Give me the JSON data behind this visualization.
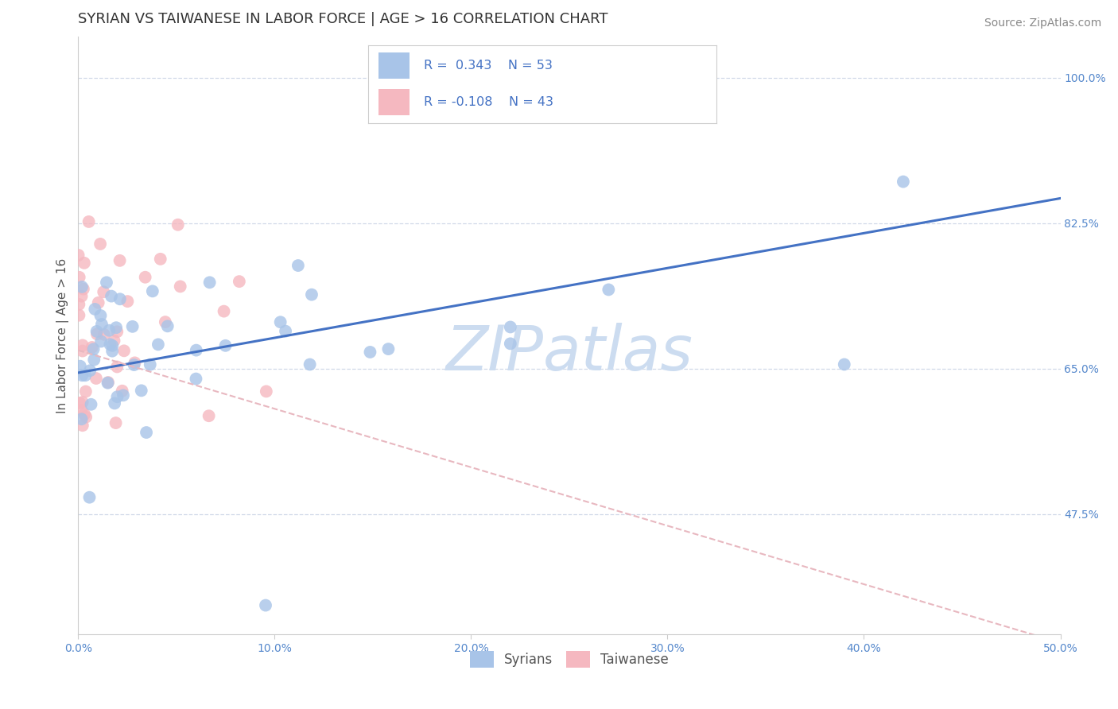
{
  "title": "SYRIAN VS TAIWANESE IN LABOR FORCE | AGE > 16 CORRELATION CHART",
  "source_text": "Source: ZipAtlas.com",
  "ylabel_text": "In Labor Force | Age > 16",
  "xlim": [
    0.0,
    0.5
  ],
  "ylim": [
    0.33,
    1.05
  ],
  "xticks": [
    0.0,
    0.1,
    0.2,
    0.3,
    0.4,
    0.5
  ],
  "xticklabels": [
    "0.0%",
    "10.0%",
    "20.0%",
    "30.0%",
    "40.0%",
    "50.0%"
  ],
  "yticks": [
    0.475,
    0.65,
    0.825,
    1.0
  ],
  "yticklabels": [
    "47.5%",
    "65.0%",
    "82.5%",
    "100.0%"
  ],
  "blue_color": "#a8c4e8",
  "pink_color": "#f5b8c0",
  "blue_line_color": "#4472c4",
  "pink_line_color": "#e8b8c0",
  "legend_R_blue": "R =  0.343",
  "legend_N_blue": "N = 53",
  "legend_R_pink": "R = -0.108",
  "legend_N_pink": "N = 43",
  "legend_label_blue": "Syrians",
  "legend_label_pink": "Taiwanese",
  "watermark": "ZIPatlas",
  "watermark_color": "#ccdcf0",
  "grid_color": "#d0d8e8",
  "background_color": "#ffffff",
  "blue_R": 0.343,
  "blue_N": 53,
  "pink_R": -0.108,
  "pink_N": 43,
  "title_fontsize": 13,
  "source_fontsize": 10,
  "axis_label_fontsize": 11,
  "tick_fontsize": 10,
  "legend_fontsize": 12,
  "watermark_fontsize": 56,
  "blue_trend_x0": 0.0,
  "blue_trend_y0": 0.645,
  "blue_trend_x1": 0.5,
  "blue_trend_y1": 0.855,
  "pink_trend_x0": 0.0,
  "pink_trend_y0": 0.672,
  "pink_trend_x1": 0.5,
  "pink_trend_y1": 0.32
}
